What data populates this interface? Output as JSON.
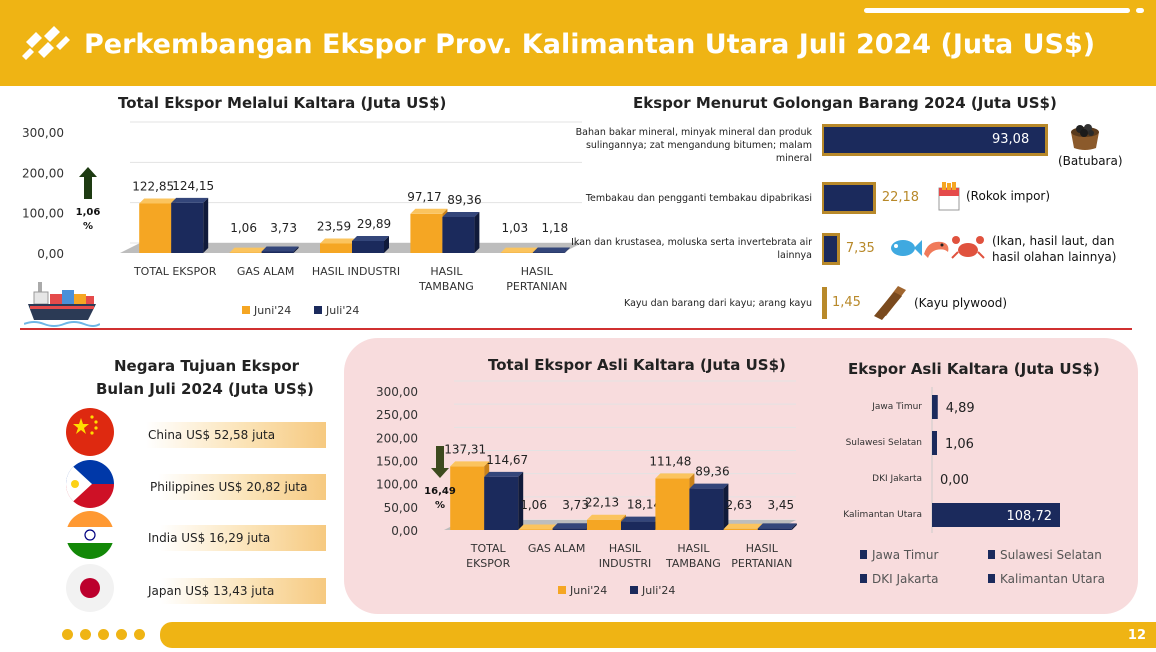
{
  "header": {
    "title": "Perkembangan Ekspor Prov. Kalimantan Utara Juli 2024 (Juta US$)",
    "page_number": "12"
  },
  "colors": {
    "accent": "#EFB414",
    "juni": "#F5A623",
    "juli": "#1B2A5C",
    "pink": "#F8DCDD"
  },
  "chart_data": [
    {
      "id": "total-ekspor",
      "type": "bar",
      "title": "Total Ekspor Melalui Kaltara (Juta US$)",
      "categories": [
        "TOTAL EKSPOR",
        "GAS ALAM",
        "HASIL INDUSTRI",
        "HASIL TAMBANG",
        "HASIL PERTANIAN"
      ],
      "series": [
        {
          "name": "Juni'24",
          "values": [
            122.85,
            1.06,
            23.59,
            97.17,
            1.03
          ],
          "labels": [
            "122,85",
            "1,06",
            "23,59",
            "97,17",
            "1,03"
          ]
        },
        {
          "name": "Juli'24",
          "values": [
            124.15,
            3.73,
            29.89,
            89.36,
            1.18
          ],
          "labels": [
            "124,15",
            "3,73",
            "29,89",
            "89,36",
            "1,18"
          ]
        }
      ],
      "ylim": [
        0,
        300
      ],
      "yticks": [
        "0,00",
        "100,00",
        "200,00",
        "300,00"
      ],
      "annotation": "1,06 %",
      "trend": "up",
      "legend": "bottom"
    },
    {
      "id": "golongan",
      "type": "bar",
      "title": "Ekspor Menurut Golongan Barang 2024 (Juta US$)",
      "orientation": "horizontal",
      "categories": [
        "Bahan bakar mineral, minyak mineral dan produk sulingannya; zat mengandung bitumen; malam mineral",
        "Tembakau dan pengganti tembakau dipabrikasi",
        "Ikan dan krustasea, moluska serta invertebrata air lainnya",
        "Kayu dan barang dari kayu; arang kayu"
      ],
      "values": [
        93.08,
        22.18,
        7.35,
        1.45
      ],
      "labels": [
        "93,08",
        "22,18",
        "7,35",
        "1,45"
      ],
      "notes": [
        "(Batubara)",
        "(Rokok impor)",
        "(Ikan, hasil laut, dan hasil olahan lainnya)",
        "(Kayu plywood)"
      ]
    },
    {
      "id": "negara",
      "type": "bar",
      "title": "Negara Tujuan Ekspor Bulan Juli 2024 (Juta US$)",
      "orientation": "horizontal",
      "categories": [
        "China",
        "Philippines",
        "India",
        "Japan"
      ],
      "values": [
        52.58,
        20.82,
        16.29,
        13.43
      ],
      "labels": [
        "China US$ 52,58 juta",
        "Philippines US$ 20,82 juta",
        "India US$ 16,29 juta",
        "Japan US$ 13,43 juta"
      ]
    },
    {
      "id": "asli",
      "type": "bar",
      "title": "Total Ekspor Asli Kaltara (Juta US$)",
      "categories": [
        "TOTAL EKSPOR",
        "GAS ALAM",
        "HASIL INDUSTRI",
        "HASIL TAMBANG",
        "HASIL PERTANIAN"
      ],
      "series": [
        {
          "name": "Juni'24",
          "values": [
            137.31,
            1.06,
            22.13,
            111.48,
            2.63
          ],
          "labels": [
            "137,31",
            "1,06",
            "22,13",
            "111,48",
            "2,63"
          ]
        },
        {
          "name": "Juli'24",
          "values": [
            114.67,
            3.73,
            18.14,
            89.36,
            3.45
          ],
          "labels": [
            "114,67",
            "3,73",
            "18,14",
            "89,36",
            "3,45"
          ]
        }
      ],
      "ylim": [
        0,
        300
      ],
      "yticks": [
        "0,00",
        "50,00",
        "100,00",
        "150,00",
        "200,00",
        "250,00",
        "300,00"
      ],
      "annotation": "16,49 %",
      "trend": "down",
      "legend": "bottom"
    },
    {
      "id": "asli-wilayah",
      "type": "bar",
      "title": "Ekspor Asli Kaltara (Juta US$)",
      "orientation": "horizontal",
      "categories": [
        "Jawa Timur",
        "Sulawesi Selatan",
        "DKI Jakarta",
        "Kalimantan Utara"
      ],
      "values": [
        4.89,
        1.06,
        0.0,
        108.72
      ],
      "labels": [
        "4,89",
        "1,06",
        "0,00",
        "108,72"
      ],
      "legend": "bottom"
    }
  ]
}
